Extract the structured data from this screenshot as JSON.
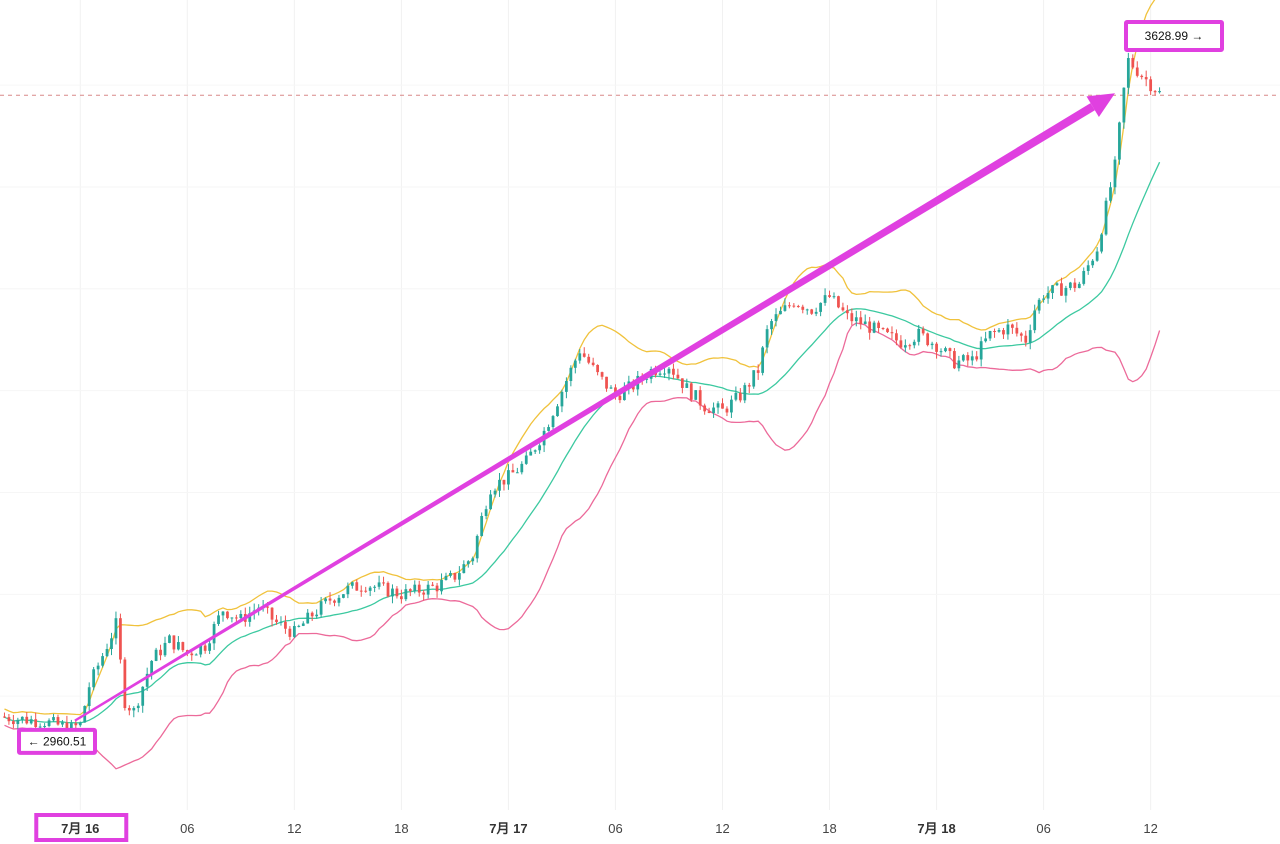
{
  "chart_data": {
    "type": "candlestick",
    "x_axis_ticks": [
      {
        "label": "7月 16",
        "hour": 0,
        "bold": true,
        "highlighted": true
      },
      {
        "label": "06",
        "hour": 6,
        "bold": false
      },
      {
        "label": "12",
        "hour": 12,
        "bold": false
      },
      {
        "label": "18",
        "hour": 18,
        "bold": false
      },
      {
        "label": "7月 17",
        "hour": 24,
        "bold": true
      },
      {
        "label": "06",
        "hour": 30,
        "bold": false
      },
      {
        "label": "12",
        "hour": 36,
        "bold": false
      },
      {
        "label": "18",
        "hour": 42,
        "bold": false
      },
      {
        "label": "7月 18",
        "hour": 48,
        "bold": true
      },
      {
        "label": "06",
        "hour": 54,
        "bold": false
      },
      {
        "label": "12",
        "hour": 60,
        "bold": false
      }
    ],
    "y_range": [
      2900,
      3660
    ],
    "x_range_hours": [
      -4.5,
      64
    ],
    "low_marker": {
      "label": "← 2960.51",
      "value": 2960.51
    },
    "high_marker": {
      "label": "3628.99 →",
      "value": 3628.99
    },
    "last_price": 3590,
    "colors": {
      "up": "#26a69a",
      "down": "#ef5350",
      "upper_band": "#f0c23c",
      "middle_band": "#3cc9a0",
      "lower_band": "#ec6a9a",
      "arrow": "#e040e0",
      "highlight_box": "#e040e0",
      "price_line": "#d88888"
    },
    "trend_arrow": {
      "from": {
        "hour": -0.3,
        "value": 2976
      },
      "to": {
        "hour": 58,
        "value": 3592
      }
    },
    "price_keypoints": [
      [
        -4.5,
        2980
      ],
      [
        -2,
        2975
      ],
      [
        -0.5,
        2968
      ],
      [
        0,
        2972
      ],
      [
        0.5,
        3010
      ],
      [
        1,
        3030
      ],
      [
        1.5,
        3050
      ],
      [
        2,
        3070
      ],
      [
        2.5,
        2995
      ],
      [
        3,
        2985
      ],
      [
        3.5,
        3010
      ],
      [
        4,
        3035
      ],
      [
        5,
        3055
      ],
      [
        6,
        3042
      ],
      [
        7,
        3050
      ],
      [
        8,
        3085
      ],
      [
        9,
        3075
      ],
      [
        10,
        3088
      ],
      [
        11,
        3072
      ],
      [
        12,
        3062
      ],
      [
        13,
        3080
      ],
      [
        14,
        3095
      ],
      [
        15,
        3105
      ],
      [
        16,
        3110
      ],
      [
        18,
        3100
      ],
      [
        20,
        3108
      ],
      [
        21,
        3118
      ],
      [
        22,
        3138
      ],
      [
        22.6,
        3182
      ],
      [
        23,
        3205
      ],
      [
        24,
        3215
      ],
      [
        25,
        3230
      ],
      [
        26,
        3260
      ],
      [
        27,
        3300
      ],
      [
        28,
        3340
      ],
      [
        29,
        3315
      ],
      [
        30,
        3295
      ],
      [
        31,
        3305
      ],
      [
        32,
        3320
      ],
      [
        33,
        3325
      ],
      [
        34,
        3302
      ],
      [
        35,
        3285
      ],
      [
        36,
        3280
      ],
      [
        37,
        3295
      ],
      [
        38,
        3320
      ],
      [
        38.6,
        3365
      ],
      [
        40,
        3388
      ],
      [
        41,
        3380
      ],
      [
        42,
        3392
      ],
      [
        43,
        3372
      ],
      [
        44,
        3365
      ],
      [
        45,
        3355
      ],
      [
        46,
        3348
      ],
      [
        47,
        3355
      ],
      [
        48,
        3345
      ],
      [
        49,
        3328
      ],
      [
        50,
        3330
      ],
      [
        51,
        3355
      ],
      [
        52,
        3362
      ],
      [
        53,
        3350
      ],
      [
        53.5,
        3380
      ],
      [
        54,
        3395
      ],
      [
        55,
        3400
      ],
      [
        56,
        3405
      ],
      [
        57,
        3440
      ],
      [
        58,
        3520
      ],
      [
        58.7,
        3625
      ],
      [
        59.5,
        3610
      ],
      [
        60.5,
        3592
      ]
    ]
  }
}
